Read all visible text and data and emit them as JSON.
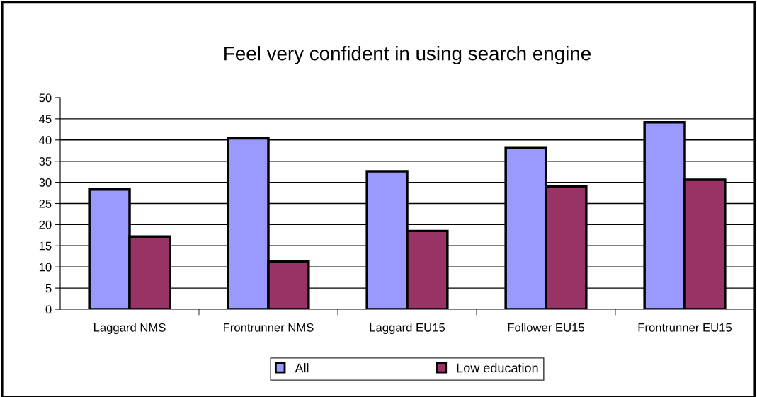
{
  "chart_data": {
    "type": "bar",
    "title": "Feel very confident in using search engine",
    "categories": [
      "Laggard NMS",
      "Frontrunner NMS",
      "Laggard EU15",
      "Follower EU15",
      "Frontrunner EU15"
    ],
    "series": [
      {
        "name": "All",
        "color": "#9999ff",
        "values": [
          28.3,
          40.4,
          32.6,
          38.1,
          44.2
        ]
      },
      {
        "name": "Low education",
        "color": "#993366",
        "values": [
          17.2,
          11.3,
          18.5,
          29.0,
          30.6
        ]
      }
    ],
    "ylim": [
      0,
      50
    ],
    "yticks": [
      0,
      5,
      10,
      15,
      20,
      25,
      30,
      35,
      40,
      45,
      50
    ],
    "grid": "y",
    "legend": "bottom"
  }
}
